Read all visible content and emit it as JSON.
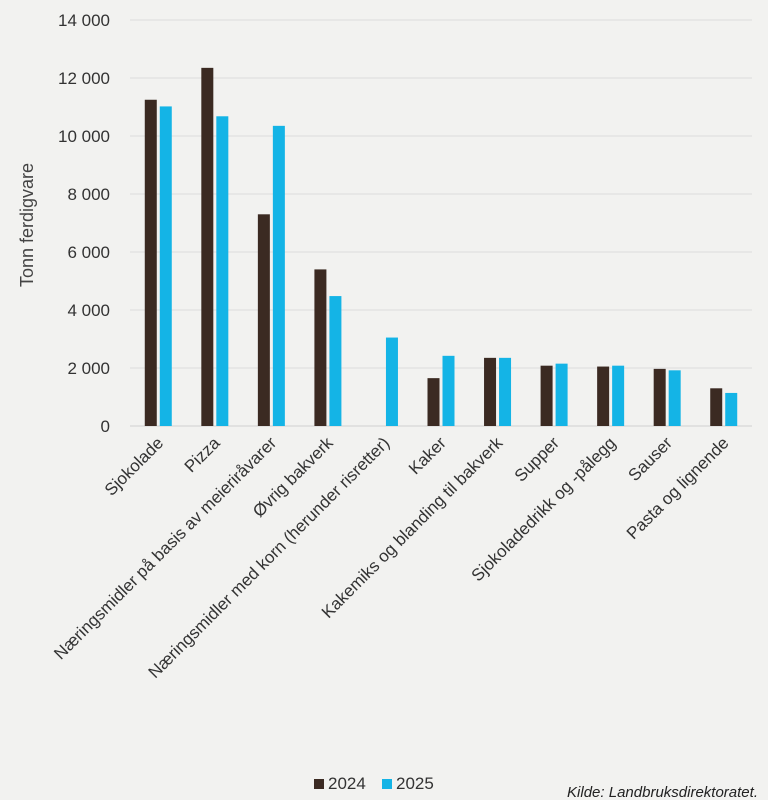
{
  "chart_data": {
    "type": "bar",
    "ylabel": "Tonn ferdigvare",
    "ylim": [
      0,
      14000
    ],
    "yticks": [
      0,
      2000,
      4000,
      6000,
      8000,
      10000,
      12000,
      14000
    ],
    "ytick_labels": [
      "0",
      "2 000",
      "4 000",
      "6 000",
      "8 000",
      "10 000",
      "12 000",
      "14 000"
    ],
    "grid": true,
    "legend_position": "bottom",
    "categories": [
      "Sjokolade",
      "Pizza",
      "Næringsmidler på basis av meieriråvarer",
      "Øvrig bakverk",
      "Næringsmidler med korn (herunder risretter)",
      "Kaker",
      "Kakemiks og blanding til bakverk",
      "Supper",
      "Sjokoladedrikk og -pålegg",
      "Sauser",
      "Pasta og lignende"
    ],
    "series": [
      {
        "name": "2024",
        "color": "#3b2a22",
        "values": [
          11250,
          12350,
          7300,
          5400,
          0,
          1650,
          2350,
          2080,
          2050,
          1970,
          1300
        ]
      },
      {
        "name": "2025",
        "color": "#14b4e6",
        "values": [
          11020,
          10680,
          10350,
          4480,
          3050,
          2420,
          2350,
          2150,
          2080,
          1920,
          1140
        ]
      }
    ]
  },
  "source": "Kilde: Landbruksdirektoratet."
}
